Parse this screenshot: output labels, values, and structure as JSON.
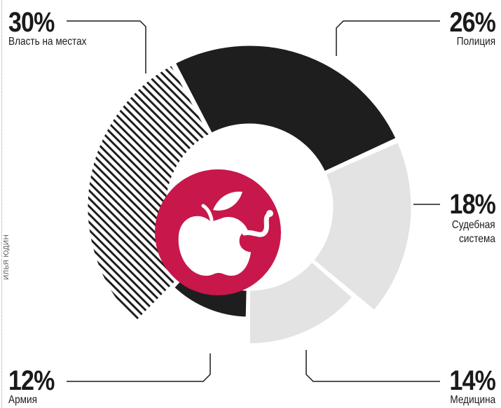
{
  "chart_data": {
    "type": "pie",
    "slices": [
      {
        "label": "Полиция",
        "value_label": "26%",
        "value": 26,
        "color": "#1e1e1e",
        "pattern": "solid"
      },
      {
        "label": "Судебная система",
        "value_label": "18%",
        "value": 18,
        "color": "#e3e3e3",
        "pattern": "solid"
      },
      {
        "label": "Медицина",
        "value_label": "14%",
        "value": 14,
        "color": "#e3e3e3",
        "pattern": "solid"
      },
      {
        "label": "Армия",
        "value_label": "12%",
        "value": 12,
        "color": "#1e1e1e",
        "pattern": "solid"
      },
      {
        "label": "Власть на местах",
        "value_label": "30%",
        "value": 30,
        "color": "#1e1e1e",
        "pattern": "hatched"
      }
    ],
    "center_icon": "apple-with-worm-icon",
    "center_color": "#c8174a"
  },
  "credit": "ИЛЬЯ ЮДИН",
  "labels": {
    "police": {
      "pct": "26%",
      "name": "Полиция"
    },
    "courts": {
      "pct": "18%",
      "name_line1": "Судебная",
      "name_line2": "система"
    },
    "medicine": {
      "pct": "14%",
      "name": "Медицина"
    },
    "army": {
      "pct": "12%",
      "name": "Армия"
    },
    "local": {
      "pct": "30%",
      "name": "Власть на местах"
    }
  }
}
